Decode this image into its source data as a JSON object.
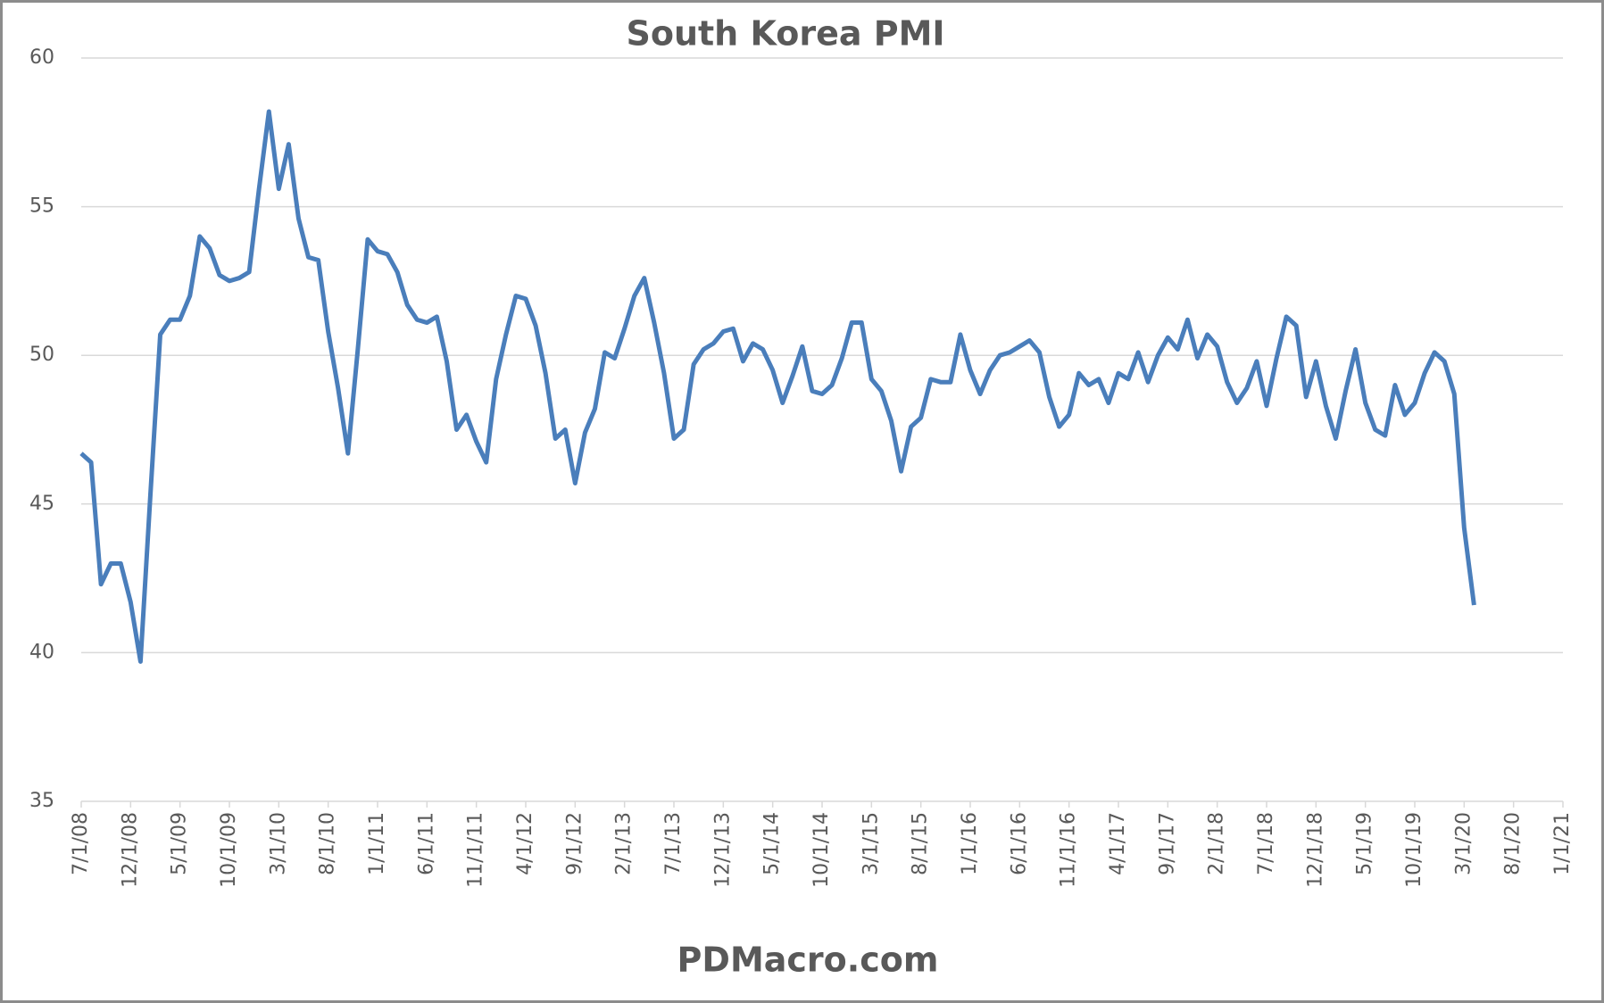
{
  "chart_data": {
    "type": "line",
    "title": "South Korea PMI",
    "footer": "PDMacro.com",
    "x": [
      "7/1/08",
      "8/1/08",
      "9/1/08",
      "10/1/08",
      "11/1/08",
      "12/1/08",
      "1/1/09",
      "2/1/09",
      "3/1/09",
      "4/1/09",
      "5/1/09",
      "6/1/09",
      "7/1/09",
      "8/1/09",
      "9/1/09",
      "10/1/09",
      "11/1/09",
      "12/1/09",
      "1/1/10",
      "2/1/10",
      "3/1/10",
      "4/1/10",
      "5/1/10",
      "6/1/10",
      "7/1/10",
      "8/1/10",
      "9/1/10",
      "10/1/10",
      "11/1/10",
      "12/1/10",
      "1/1/11",
      "2/1/11",
      "3/1/11",
      "4/1/11",
      "5/1/11",
      "6/1/11",
      "7/1/11",
      "8/1/11",
      "9/1/11",
      "10/1/11",
      "11/1/11",
      "12/1/11",
      "1/1/12",
      "2/1/12",
      "3/1/12",
      "4/1/12",
      "5/1/12",
      "6/1/12",
      "7/1/12",
      "8/1/12",
      "9/1/12",
      "10/1/12",
      "11/1/12",
      "12/1/12",
      "1/1/13",
      "2/1/13",
      "3/1/13",
      "4/1/13",
      "5/1/13",
      "6/1/13",
      "7/1/13",
      "8/1/13",
      "9/1/13",
      "10/1/13",
      "11/1/13",
      "12/1/13",
      "1/1/14",
      "2/1/14",
      "3/1/14",
      "4/1/14",
      "5/1/14",
      "6/1/14",
      "7/1/14",
      "8/1/14",
      "9/1/14",
      "10/1/14",
      "11/1/14",
      "12/1/14",
      "1/1/15",
      "2/1/15",
      "3/1/15",
      "4/1/15",
      "5/1/15",
      "6/1/15",
      "7/1/15",
      "8/1/15",
      "9/1/15",
      "10/1/15",
      "11/1/15",
      "12/1/15",
      "1/1/16",
      "2/1/16",
      "3/1/16",
      "4/1/16",
      "5/1/16",
      "6/1/16",
      "7/1/16",
      "8/1/16",
      "9/1/16",
      "10/1/16",
      "11/1/16",
      "12/1/16",
      "1/1/17",
      "2/1/17",
      "3/1/17",
      "4/1/17",
      "5/1/17",
      "6/1/17",
      "7/1/17",
      "8/1/17",
      "9/1/17",
      "10/1/17",
      "11/1/17",
      "12/1/17",
      "1/1/18",
      "2/1/18",
      "3/1/18",
      "4/1/18",
      "5/1/18",
      "6/1/18",
      "7/1/18",
      "8/1/18",
      "9/1/18",
      "10/1/18",
      "11/1/18",
      "12/1/18",
      "1/1/19",
      "2/1/19",
      "3/1/19",
      "4/1/19",
      "5/1/19",
      "6/1/19",
      "7/1/19",
      "8/1/19",
      "9/1/19",
      "10/1/19",
      "11/1/19",
      "12/1/19",
      "1/1/20",
      "2/1/20",
      "3/1/20",
      "4/1/20"
    ],
    "values": [
      46.7,
      46.4,
      42.3,
      43.0,
      43.0,
      41.7,
      39.7,
      45.3,
      50.7,
      51.2,
      51.2,
      52.0,
      54.0,
      53.6,
      52.7,
      52.5,
      52.6,
      52.8,
      55.6,
      58.2,
      55.6,
      57.1,
      54.6,
      53.3,
      53.2,
      50.8,
      48.9,
      46.7,
      50.2,
      53.9,
      53.5,
      53.4,
      52.8,
      51.7,
      51.2,
      51.1,
      51.3,
      49.8,
      47.5,
      48.0,
      47.1,
      46.4,
      49.2,
      50.7,
      52.0,
      51.9,
      51.0,
      49.4,
      47.2,
      47.5,
      45.7,
      47.4,
      48.2,
      50.1,
      49.9,
      50.9,
      52.0,
      52.6,
      51.1,
      49.4,
      47.2,
      47.5,
      49.7,
      50.2,
      50.4,
      50.8,
      50.9,
      49.8,
      50.4,
      50.2,
      49.5,
      48.4,
      49.3,
      50.3,
      48.8,
      48.7,
      49.0,
      49.9,
      51.1,
      51.1,
      49.2,
      48.8,
      47.8,
      46.1,
      47.6,
      47.9,
      49.2,
      49.1,
      49.1,
      50.7,
      49.5,
      48.7,
      49.5,
      50.0,
      50.1,
      50.3,
      50.5,
      50.1,
      48.6,
      47.6,
      48.0,
      49.4,
      49.0,
      49.2,
      48.4,
      49.4,
      49.2,
      50.1,
      49.1,
      50.0,
      50.6,
      50.2,
      51.2,
      49.9,
      50.7,
      50.3,
      49.1,
      48.4,
      48.9,
      49.8,
      48.3,
      49.9,
      51.3,
      51.0,
      48.6,
      49.8,
      48.3,
      47.2,
      48.8,
      50.2,
      48.4,
      47.5,
      47.3,
      49.0,
      48.0,
      48.4,
      49.4,
      50.1,
      49.8,
      48.7,
      44.2,
      41.6
    ],
    "color": "#4a7ebb",
    "xlim": [
      "7/1/08",
      "1/1/21"
    ],
    "xticks": [
      "7/1/08",
      "12/1/08",
      "5/1/09",
      "10/1/09",
      "3/1/10",
      "8/1/10",
      "1/1/11",
      "6/1/11",
      "11/1/11",
      "4/1/12",
      "9/1/12",
      "2/1/13",
      "7/1/13",
      "12/1/13",
      "5/1/14",
      "10/1/14",
      "3/1/15",
      "8/1/15",
      "1/1/16",
      "6/1/16",
      "11/1/16",
      "4/1/17",
      "9/1/17",
      "2/1/18",
      "7/1/18",
      "12/1/18",
      "5/1/19",
      "10/1/19",
      "3/1/20",
      "8/1/20",
      "1/1/21"
    ],
    "ylim": [
      35,
      60
    ],
    "yticks": [
      35,
      40,
      45,
      50,
      55,
      60
    ],
    "grid": true
  }
}
